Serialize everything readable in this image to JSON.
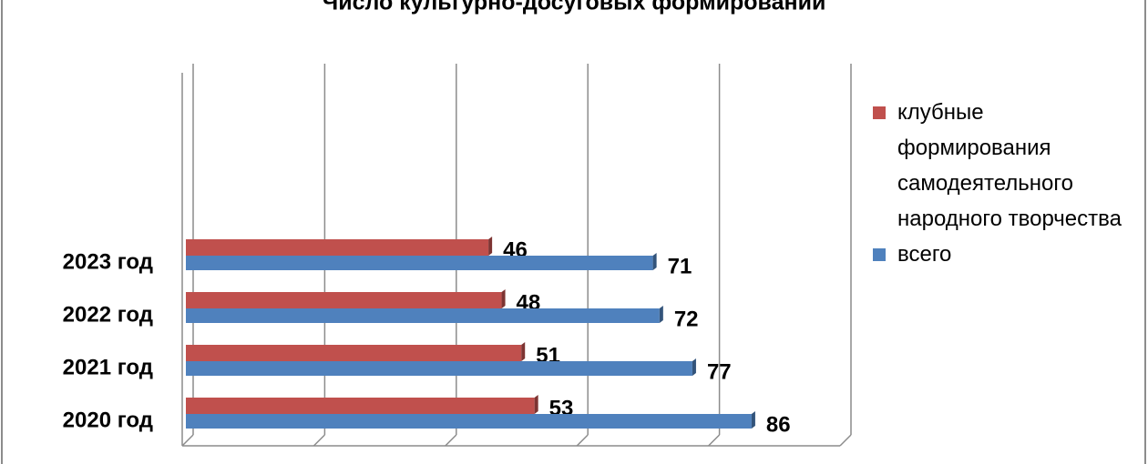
{
  "chart_data": {
    "type": "bar",
    "orientation": "horizontal",
    "title": "Число культурно-досуговых формирований",
    "categories": [
      "2020 год",
      "2021 год",
      "2022 год",
      "2023 год"
    ],
    "series": [
      {
        "name": "клубные формирования самодеятельного народного творчества",
        "color": "#c0504d",
        "values": [
          53,
          51,
          48,
          46
        ]
      },
      {
        "name": "всего",
        "color": "#4f81bd",
        "values": [
          86,
          77,
          72,
          71
        ]
      }
    ],
    "xlim": [
      0,
      100
    ],
    "xticks": [
      0,
      20,
      40,
      60,
      80,
      100
    ],
    "grid": true,
    "legend": "right"
  }
}
